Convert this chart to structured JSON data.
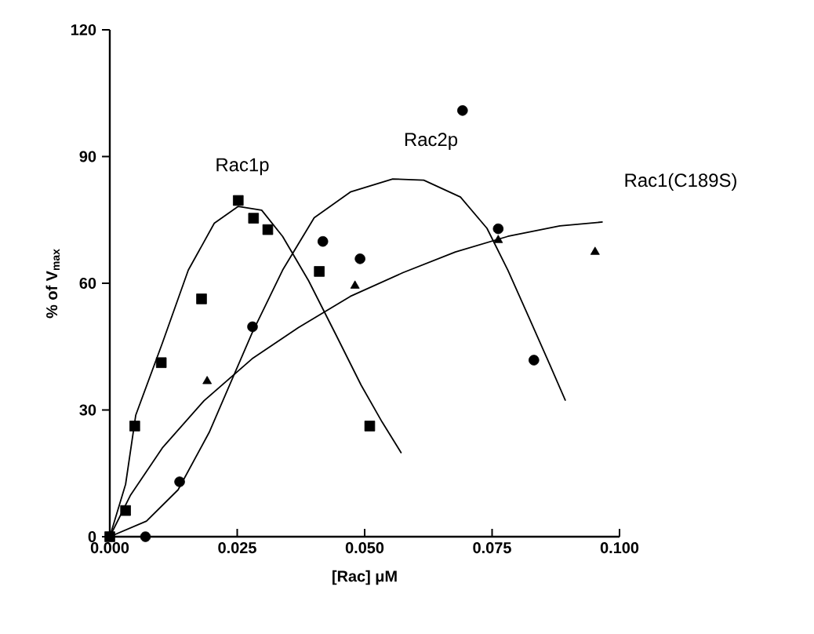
{
  "chart_data": {
    "type": "scatter",
    "xlabel": "[Rac] μM",
    "ylabel": "% of V$_{max}$",
    "xlim": [
      0,
      0.1
    ],
    "ylim": [
      0,
      120
    ],
    "xticks": [
      {
        "value": 0,
        "label": "0.000"
      },
      {
        "value": 0.025,
        "label": "0.025"
      },
      {
        "value": 0.05,
        "label": "0.050"
      },
      {
        "value": 0.075,
        "label": "0.075"
      },
      {
        "value": 0.1,
        "label": "0.100"
      }
    ],
    "yticks": [
      0,
      30,
      60,
      90,
      120
    ],
    "grid": false,
    "annotations": [
      "Rac1p",
      "Rac2p",
      "Rac1(C189S)"
    ],
    "series": [
      {
        "marker": "square",
        "color": "#000000",
        "x": [
          0,
          0.0031,
          0.0049,
          0.0101,
          0.018,
          0.0252,
          0.0282,
          0.031,
          0.0411,
          0.051
        ],
        "values": [
          0,
          6.2,
          26.2,
          41.2,
          56.3,
          79.6,
          75.4,
          72.7,
          62.8,
          26.2
        ]
      },
      {
        "marker": "circle",
        "color": "#000000",
        "x": [
          0.007,
          0.0137,
          0.028,
          0.0418,
          0.0491,
          0.0692,
          0.0762,
          0.0832
        ],
        "values": [
          0,
          13,
          49.7,
          69.9,
          65.8,
          100.9,
          72.9,
          41.8
        ]
      },
      {
        "marker": "triangle",
        "color": "#000000",
        "x": [
          0.0191,
          0.0481,
          0.0762,
          0.0952
        ],
        "values": [
          36.8,
          59.4,
          70.2,
          67.4
        ]
      },
      {
        "type": "line",
        "marker": "none",
        "color": "#000000",
        "x": [
          0,
          0.0031,
          0.0051,
          0.0103,
          0.0154,
          0.0205,
          0.0252,
          0.0298,
          0.0339,
          0.039,
          0.0442,
          0.0493,
          0.0534,
          0.0572
        ],
        "values": [
          0,
          12.4,
          28.8,
          45.8,
          63.1,
          74.2,
          78.2,
          77.3,
          71.1,
          60.6,
          48.2,
          35.9,
          27.2,
          19.8
        ]
      },
      {
        "type": "line",
        "marker": "none",
        "color": "#000000",
        "x": [
          0,
          0.0072,
          0.0134,
          0.0195,
          0.0279,
          0.0339,
          0.0401,
          0.0472,
          0.0555,
          0.0616,
          0.0688,
          0.074,
          0.0781,
          0.0822,
          0.0863,
          0.0894
        ],
        "values": [
          0,
          3.7,
          11.1,
          24.7,
          48.2,
          63.1,
          75.5,
          81.6,
          84.7,
          84.4,
          80.4,
          73.0,
          63.1,
          52.0,
          40.8,
          32.2
        ]
      },
      {
        "type": "line",
        "marker": "none",
        "color": "#000000",
        "x": [
          0,
          0.0041,
          0.0103,
          0.0185,
          0.0279,
          0.037,
          0.0472,
          0.0575,
          0.0678,
          0.0781,
          0.0883,
          0.0967
        ],
        "values": [
          0,
          9.9,
          21.0,
          32.2,
          42.1,
          49.5,
          56.9,
          62.5,
          67.4,
          71.1,
          73.6,
          74.5
        ]
      }
    ]
  }
}
